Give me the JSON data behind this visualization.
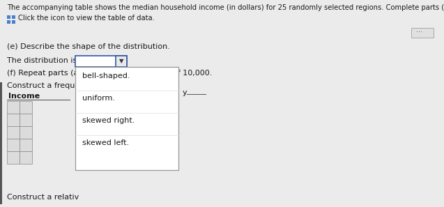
{
  "bg_color": "#ebebeb",
  "header_text_line1": "The accompanying table shows the median household income (in dollars) for 25 randomly selected regions. Complete parts (a) through (g) below.",
  "icon_text": "Click the icon to view the table of data.",
  "part_e_label": "(e) Describe the shape of the distribution.",
  "distribution_label": "The distribution is",
  "part_f_label": "(f) Repeat parts (a",
  "part_f_suffix": "of 10,000.",
  "construct_freq_label": "Construct a freque",
  "income_label": "Income",
  "construct_rel_label": "Construct a relativ",
  "dropdown_options": [
    "bell-shaped.",
    "uniform.",
    "skewed right.",
    "skewed left."
  ],
  "ellipsis_text": "...",
  "y_label": "y"
}
